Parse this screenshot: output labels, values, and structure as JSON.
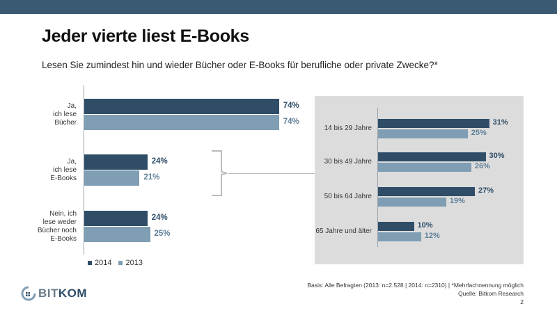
{
  "header": {
    "title": "Jeder vierte liest E-Books",
    "subtitle": "Lesen Sie zumindest hin und wieder Bücher oder E-Books für berufliche oder private Zwecke?*"
  },
  "colors": {
    "band": "#3a5a74",
    "series_2014": "#2f4d67",
    "series_2013": "#7f9db3",
    "panel": "#dcdcdc"
  },
  "chart_data": [
    {
      "type": "bar",
      "orientation": "horizontal",
      "categories": [
        "Ja,\nich lese\nBücher",
        "Ja,\nich lese\nE-Books",
        "Nein, ich\nlese weder\nBücher noch\nE-Books"
      ],
      "series": [
        {
          "name": "2014",
          "values": [
            74,
            24,
            24
          ],
          "labels": [
            "74%",
            "24%",
            "24%"
          ]
        },
        {
          "name": "2013",
          "values": [
            74,
            21,
            25
          ],
          "labels": [
            "74%",
            "21%",
            "25%"
          ]
        }
      ],
      "legend": {
        "items": [
          "2014",
          "2013"
        ],
        "position": "bottom-left"
      },
      "unit": "%"
    },
    {
      "type": "bar",
      "orientation": "horizontal",
      "categories": [
        "14 bis 29 Jahre",
        "30 bis 49 Jahre",
        "50 bis 64 Jahre",
        "65 Jahre und älter"
      ],
      "series": [
        {
          "name": "2014",
          "values": [
            31,
            30,
            27,
            10
          ],
          "labels": [
            "31%",
            "30%",
            "27%",
            "10%"
          ]
        },
        {
          "name": "2013",
          "values": [
            25,
            26,
            19,
            12
          ],
          "labels": [
            "25%",
            "26%",
            "19%",
            "12%"
          ]
        }
      ],
      "unit": "%"
    }
  ],
  "legend": {
    "y2014": "2014",
    "y2013": "2013"
  },
  "logo": {
    "prefix": "BIT",
    "suffix": "KOM"
  },
  "footer": {
    "basis": "Basis: Alle Befragten (2013: n=2.528 | 2014: n=2310) | *Mehrfachnennung möglich",
    "source": "Quelle: Bitkom Research",
    "page_number": "2"
  }
}
